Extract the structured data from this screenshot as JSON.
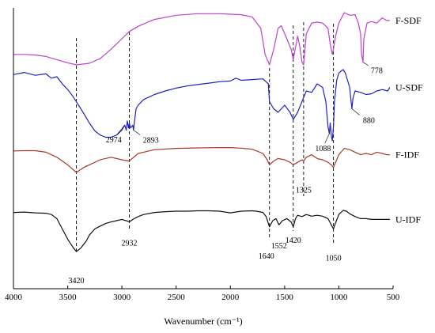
{
  "chart_data": {
    "type": "line",
    "title": "",
    "xlabel": "Wavenumber (cm⁻¹)",
    "ylabel": "",
    "xlim": [
      4000,
      500
    ],
    "x_reversed": true,
    "xticks": [
      4000,
      3500,
      3000,
      2500,
      2000,
      1500,
      1000,
      500
    ],
    "xtick_labels": [
      "4000",
      "3500",
      "3000",
      "2500",
      "2000",
      "1500",
      "1000",
      "500"
    ],
    "grid": false,
    "legend": "inline labels at right end of each curve",
    "series": [
      {
        "name": "F-SDF",
        "color": "#c040d0",
        "x": [
          4000,
          3900,
          3800,
          3700,
          3600,
          3500,
          3420,
          3300,
          3200,
          3100,
          3000,
          2932,
          2850,
          2700,
          2500,
          2300,
          2100,
          2000,
          1900,
          1800,
          1720,
          1680,
          1640,
          1600,
          1560,
          1530,
          1480,
          1440,
          1420,
          1380,
          1360,
          1340,
          1325,
          1300,
          1250,
          1200,
          1150,
          1100,
          1080,
          1060,
          1050,
          1030,
          1000,
          950,
          900,
          850,
          820,
          800,
          790,
          778,
          770,
          740,
          700,
          650,
          600,
          560,
          530
        ],
        "y": [
          0.2,
          0.2,
          0.19,
          0.16,
          0.1,
          0.04,
          0.0,
          0.03,
          0.12,
          0.3,
          0.5,
          0.64,
          0.74,
          0.87,
          0.95,
          0.98,
          0.98,
          0.97,
          0.96,
          0.92,
          0.7,
          0.2,
          0.0,
          0.3,
          0.7,
          0.75,
          0.5,
          0.3,
          0.1,
          0.55,
          0.35,
          0.05,
          0.0,
          0.6,
          0.8,
          0.82,
          0.8,
          0.7,
          0.4,
          0.2,
          0.3,
          0.55,
          0.8,
          1.0,
          0.95,
          0.96,
          0.8,
          0.6,
          0.2,
          0.05,
          0.5,
          0.8,
          0.83,
          0.8,
          0.9,
          0.85,
          0.85
        ]
      },
      {
        "name": "U-SDF",
        "color": "#2020c0",
        "x": [
          4000,
          3900,
          3800,
          3700,
          3650,
          3600,
          3550,
          3500,
          3450,
          3400,
          3350,
          3300,
          3250,
          3200,
          3150,
          3100,
          3050,
          3000,
          2974,
          2960,
          2950,
          2940,
          2932,
          2920,
          2900,
          2893,
          2870,
          2850,
          2800,
          2700,
          2600,
          2500,
          2400,
          2300,
          2200,
          2100,
          2000,
          1950,
          1900,
          1800,
          1700,
          1650,
          1640,
          1600,
          1560,
          1500,
          1450,
          1420,
          1380,
          1340,
          1300,
          1250,
          1200,
          1150,
          1120,
          1100,
          1088,
          1080,
          1070,
          1060,
          1050,
          1040,
          1020,
          1000,
          980,
          960,
          940,
          920,
          900,
          890,
          880,
          870,
          850,
          800,
          750,
          700,
          650,
          600,
          550,
          530
        ],
        "y": [
          0.93,
          0.96,
          0.92,
          0.94,
          0.88,
          0.9,
          0.8,
          0.72,
          0.62,
          0.5,
          0.38,
          0.25,
          0.14,
          0.08,
          0.05,
          0.05,
          0.08,
          0.15,
          0.22,
          0.15,
          0.28,
          0.18,
          0.25,
          0.18,
          0.22,
          0.15,
          0.45,
          0.5,
          0.58,
          0.65,
          0.7,
          0.74,
          0.77,
          0.79,
          0.81,
          0.83,
          0.84,
          0.88,
          0.85,
          0.86,
          0.87,
          0.8,
          0.55,
          0.45,
          0.4,
          0.5,
          0.4,
          0.3,
          0.4,
          0.55,
          0.7,
          0.68,
          0.8,
          0.75,
          0.55,
          0.2,
          0.1,
          0.25,
          0.08,
          0.0,
          0.2,
          0.55,
          0.85,
          0.95,
          0.98,
          1.0,
          0.95,
          0.85,
          0.75,
          0.6,
          0.45,
          0.6,
          0.7,
          0.68,
          0.65,
          0.66,
          0.7,
          0.72,
          0.7,
          0.75
        ]
      },
      {
        "name": "F-IDF",
        "color": "#a83828",
        "x": [
          4000,
          3900,
          3800,
          3700,
          3600,
          3500,
          3420,
          3350,
          3300,
          3200,
          3100,
          3000,
          2932,
          2850,
          2800,
          2700,
          2500,
          2300,
          2100,
          2000,
          1900,
          1800,
          1700,
          1660,
          1640,
          1600,
          1560,
          1500,
          1450,
          1420,
          1380,
          1340,
          1325,
          1300,
          1250,
          1200,
          1150,
          1100,
          1070,
          1050,
          1030,
          1000,
          950,
          900,
          850,
          800,
          750,
          700,
          650,
          600,
          560,
          530
        ],
        "y": [
          0.85,
          0.86,
          0.86,
          0.8,
          0.6,
          0.3,
          0.0,
          0.2,
          0.3,
          0.5,
          0.6,
          0.5,
          0.45,
          0.75,
          0.8,
          0.9,
          0.95,
          0.97,
          0.98,
          0.98,
          0.96,
          0.92,
          0.75,
          0.5,
          0.3,
          0.45,
          0.55,
          0.5,
          0.4,
          0.3,
          0.4,
          0.5,
          0.45,
          0.6,
          0.7,
          0.55,
          0.5,
          0.4,
          0.3,
          0.2,
          0.4,
          0.7,
          0.95,
          0.9,
          0.8,
          0.7,
          0.75,
          0.7,
          0.8,
          0.75,
          0.7,
          0.7
        ]
      },
      {
        "name": "U-IDF",
        "color": "#101010",
        "x": [
          4000,
          3900,
          3800,
          3700,
          3650,
          3600,
          3550,
          3500,
          3450,
          3420,
          3380,
          3330,
          3300,
          3250,
          3200,
          3150,
          3100,
          3050,
          3000,
          2950,
          2932,
          2900,
          2850,
          2800,
          2700,
          2600,
          2500,
          2400,
          2300,
          2200,
          2100,
          2000,
          1900,
          1800,
          1760,
          1700,
          1670,
          1640,
          1610,
          1580,
          1552,
          1520,
          1480,
          1440,
          1420,
          1400,
          1380,
          1340,
          1300,
          1250,
          1200,
          1150,
          1100,
          1080,
          1060,
          1050,
          1030,
          1000,
          960,
          930,
          900,
          850,
          800,
          750,
          700,
          650,
          600,
          560,
          530
        ],
        "y": [
          0.95,
          0.96,
          0.94,
          0.93,
          0.9,
          0.8,
          0.55,
          0.3,
          0.1,
          0.0,
          0.08,
          0.25,
          0.4,
          0.55,
          0.62,
          0.68,
          0.72,
          0.75,
          0.78,
          0.74,
          0.72,
          0.78,
          0.85,
          0.9,
          0.95,
          0.97,
          0.98,
          0.98,
          0.99,
          0.99,
          0.98,
          0.94,
          0.98,
          0.99,
          0.98,
          0.95,
          0.85,
          0.6,
          0.75,
          0.8,
          0.65,
          0.75,
          0.8,
          0.72,
          0.6,
          0.8,
          0.88,
          0.85,
          0.9,
          0.86,
          0.88,
          0.86,
          0.8,
          0.7,
          0.6,
          0.55,
          0.7,
          0.9,
          1.0,
          0.98,
          0.92,
          0.85,
          0.8,
          0.8,
          0.78,
          0.78,
          0.78,
          0.78,
          0.78
        ]
      }
    ],
    "reference_lines": [
      {
        "x": 3420,
        "label": "3420"
      },
      {
        "x": 2932,
        "label": "2932"
      },
      {
        "x": 1640,
        "label": "1640"
      },
      {
        "x": 1420,
        "label": "1420"
      },
      {
        "x": 1325,
        "label": "1325"
      },
      {
        "x": 1050,
        "label": "1050"
      }
    ],
    "annotations": [
      {
        "text": "2974",
        "x": 2974,
        "series": "U-SDF"
      },
      {
        "text": "2893",
        "x": 2893,
        "series": "U-SDF"
      },
      {
        "text": "1088",
        "x": 1088,
        "series": "U-SDF"
      },
      {
        "text": "880",
        "x": 880,
        "series": "U-SDF"
      },
      {
        "text": "778",
        "x": 778,
        "series": "F-SDF"
      },
      {
        "text": "1325",
        "x": 1325,
        "series": "F-IDF"
      },
      {
        "text": "1552",
        "x": 1552,
        "series": "U-IDF"
      },
      {
        "text": "1420",
        "x": 1420,
        "series": "U-IDF"
      },
      {
        "text": "1050",
        "x": 1050,
        "series": "U-IDF"
      },
      {
        "text": "1640",
        "x": 1640,
        "series": "U-IDF"
      },
      {
        "text": "2932",
        "x": 2932,
        "series": "U-IDF"
      },
      {
        "text": "3420",
        "x": 3420,
        "series": "U-IDF"
      }
    ]
  }
}
